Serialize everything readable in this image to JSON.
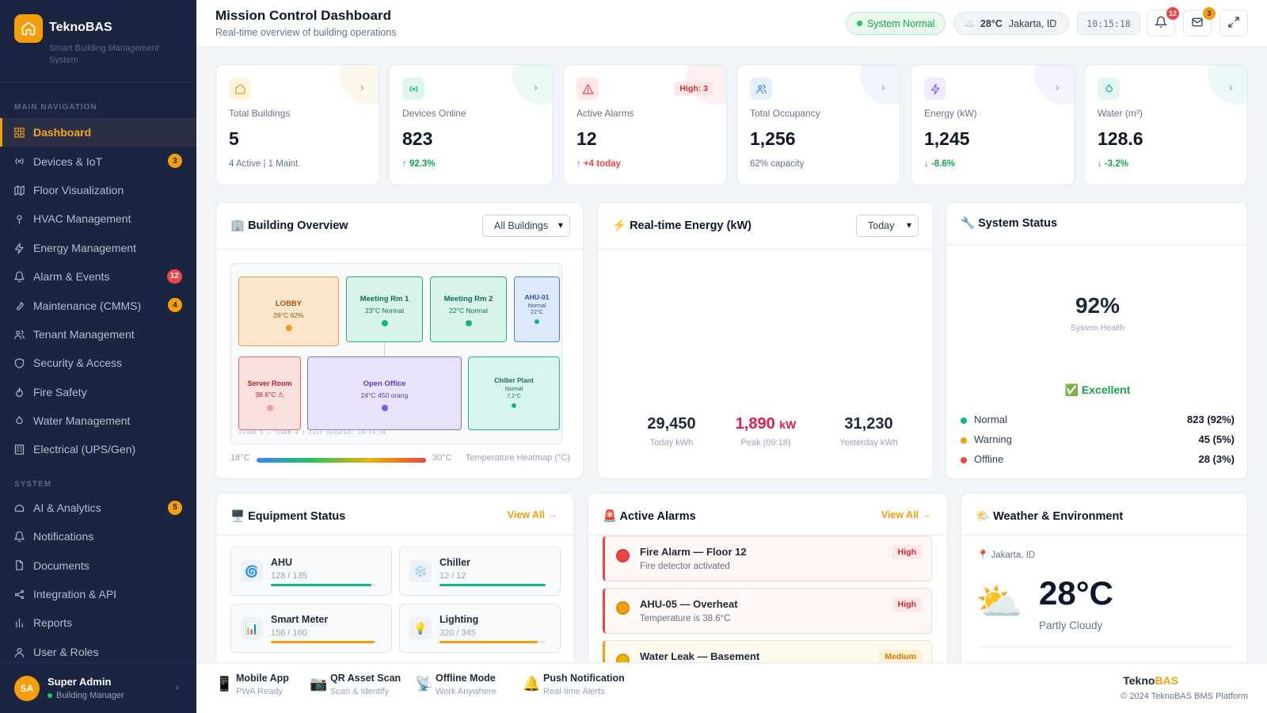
{
  "app": {
    "name": "TeknoBAS",
    "subtitle": "Smart Building Management System",
    "footer_brand_a": "Tekno",
    "footer_brand_b": "BAS",
    "copyright": "© 2024 TeknoBAS BMS Platform"
  },
  "colors": {
    "accent": "#f59e0b",
    "sidebar_bg": "#1b2440",
    "success": "#22c55e",
    "danger": "#ef4444"
  },
  "sidebar": {
    "main_label": "MAIN NAVIGATION",
    "items": [
      {
        "label": "Dashboard",
        "icon": "grid-icon",
        "active": true
      },
      {
        "label": "Devices & IoT",
        "icon": "radio-icon",
        "badge": "3"
      },
      {
        "label": "Floor Visualization",
        "icon": "map-icon"
      },
      {
        "label": "HVAC Management",
        "icon": "thermometer-icon"
      },
      {
        "label": "Energy Management",
        "icon": "lightning-icon"
      },
      {
        "label": "Alarm & Events",
        "icon": "bell-icon",
        "badge": "12"
      },
      {
        "label": "Maintenance (CMMS)",
        "icon": "wrench-icon",
        "badge": "4"
      },
      {
        "label": "Tenant Management",
        "icon": "users-icon"
      },
      {
        "label": "Security & Access",
        "icon": "shield-icon"
      },
      {
        "label": "Fire Safety",
        "icon": "flame-icon"
      },
      {
        "label": "Water Management",
        "icon": "droplet-icon"
      },
      {
        "label": "Electrical (UPS/Gen)",
        "icon": "building-icon"
      }
    ],
    "system_label": "SYSTEM",
    "system_items": [
      {
        "label": "AI & Analytics",
        "icon": "brain-icon",
        "badge": "5"
      },
      {
        "label": "Notifications",
        "icon": "bell-icon"
      },
      {
        "label": "Documents",
        "icon": "document-icon"
      },
      {
        "label": "Integration & API",
        "icon": "share-icon"
      },
      {
        "label": "Reports",
        "icon": "bar-chart-icon"
      },
      {
        "label": "User & Roles",
        "icon": "user-icon"
      }
    ],
    "user": {
      "initials": "SA",
      "name": "Super Admin",
      "role": "Building Manager"
    }
  },
  "header": {
    "title": "Mission Control Dashboard",
    "subtitle": "Real-time overview of building operations",
    "status": "System Normal",
    "weather_icon": "☁️",
    "temp": "28°C",
    "location": "Jakarta, ID",
    "clock": "10:15:18",
    "notif_count": "12",
    "mail_count": "3"
  },
  "kpis": [
    {
      "label": "Total Buildings",
      "value": "5",
      "sub": "4 Active  |  1 Maint.",
      "icon": "home-icon",
      "color": "#f59e0b"
    },
    {
      "label": "Devices Online",
      "value": "823",
      "sub": "↑ 92.3%",
      "icon": "radio-icon",
      "color": "#10b981"
    },
    {
      "label": "Active Alarms",
      "value": "12",
      "sub": "↑ +4 today",
      "badge": "High: 3",
      "icon": "alert-icon",
      "color": "#ef4444"
    },
    {
      "label": "Total Occupancy",
      "value": "1,256",
      "sub": "62% capacity",
      "icon": "users-icon",
      "color": "#3b82f6"
    },
    {
      "label": "Energy (kW)",
      "value": "1,245",
      "sub": "↓ -8.6%",
      "icon": "lightning-icon",
      "color": "#8b5cf6"
    },
    {
      "label": "Water (m³)",
      "value": "128.6",
      "sub": "↓ -3.2%",
      "icon": "droplet-icon",
      "color": "#14b8a6"
    }
  ],
  "building": {
    "title": "🏢 Building Overview",
    "select": "All Buildings",
    "rooms": [
      {
        "name": "LOBBY",
        "info": "28°C 62%"
      },
      {
        "name": "Meeting Rm 1",
        "info": "23°C Normal"
      },
      {
        "name": "Meeting Rm 2",
        "info": "22°C Normal"
      },
      {
        "name": "AHU-01",
        "info": "Normal",
        "info2": "22°C"
      },
      {
        "name": "Server Room",
        "info": "38.6°C ⚠"
      },
      {
        "name": "Open Office",
        "info": "24°C 450 orang"
      },
      {
        "name": "Chiller Plant",
        "info": "Normal",
        "info2": "7.1°C"
      }
    ],
    "floor_label": "FLOOR 5 — TOWER A  |  Last Updated: 10:24:38",
    "heat_min": "18°C",
    "heat_max": "30°C",
    "heat_label": "Temperature Heatmap (°C)"
  },
  "energy": {
    "title": "⚡ Real-time Energy (kW)",
    "select": "Today",
    "today": "29,450",
    "today_label": "Today kWh",
    "peak": "1,890",
    "peak_unit": "kW",
    "peak_label": "Peak (09:18)",
    "yesterday": "31,230",
    "yesterday_label": "Yesterday kWh"
  },
  "system_status": {
    "title": "🔧 System Status",
    "health": "92%",
    "health_label": "System Health",
    "rating": "✅ Excellent",
    "rows": [
      {
        "label": "Normal",
        "value": "823 (92%)",
        "color": "#10b981"
      },
      {
        "label": "Warning",
        "value": "45 (5%)",
        "color": "#f59e0b"
      },
      {
        "label": "Offline",
        "value": "28 (3%)",
        "color": "#ef4444"
      }
    ]
  },
  "equipment": {
    "title": "🖥️ Equipment Status",
    "view_all": "View All →",
    "items": [
      {
        "name": "AHU",
        "count": "128 / 135",
        "icon": "🌀",
        "progress": 0.948,
        "color": "#10b981"
      },
      {
        "name": "Chiller",
        "count": "12 / 12",
        "icon": "❄️",
        "progress": 1.0,
        "color": "#10b981"
      },
      {
        "name": "Smart Meter",
        "count": "156 / 160",
        "icon": "📊",
        "progress": 0.975,
        "color": "#f59e0b"
      },
      {
        "name": "Lighting",
        "count": "320 / 345",
        "icon": "💡",
        "progress": 0.928,
        "color": "#f59e0b"
      }
    ]
  },
  "alarms": {
    "title": "🚨 Active Alarms",
    "view_all": "View All →",
    "items": [
      {
        "title": "Fire Alarm — Floor 12",
        "desc": "Fire detector activated",
        "severity": "High",
        "dot": "#ef4444"
      },
      {
        "title": "AHU-05 — Overheat",
        "desc": "Temperature is 38.6°C",
        "severity": "High",
        "dot": "#f59e0b"
      },
      {
        "title": "Water Leak — Basement",
        "desc": "",
        "severity": "Medium",
        "dot": "#eab308"
      }
    ]
  },
  "weather_card": {
    "title": "🌤️ Weather & Environment",
    "location": "📍 Jakarta, ID",
    "icon": "⛅",
    "temp": "28°C",
    "condition": "Partly Cloudy"
  },
  "features": [
    {
      "title": "Mobile App",
      "sub": "PWA Ready",
      "icon": "📱"
    },
    {
      "title": "QR Asset Scan",
      "sub": "Scan & Identify",
      "icon": "📷"
    },
    {
      "title": "Offline Mode",
      "sub": "Work Anywhere",
      "icon": "📡"
    },
    {
      "title": "Push Notification",
      "sub": "Real-time Alerts",
      "icon": "🔔"
    }
  ]
}
